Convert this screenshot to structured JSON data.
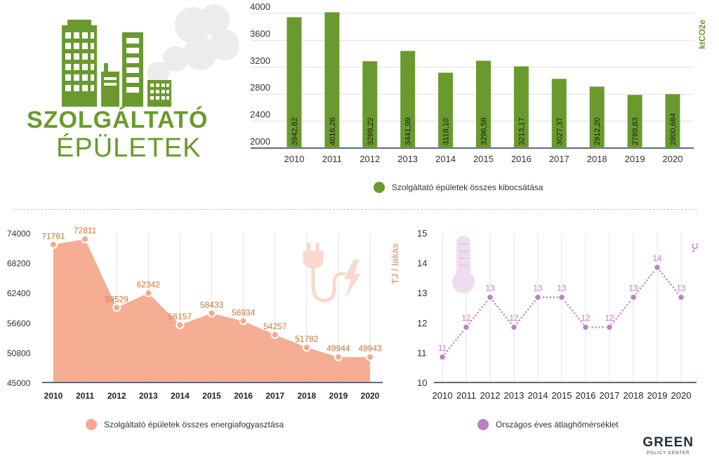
{
  "heading": {
    "line1": "SZOLGÁLTATÓ",
    "line2": "ÉPÜLETEK"
  },
  "icons": {
    "buildings": "city-buildings-icon",
    "plug": "power-plug-icon",
    "thermometer": "thermometer-icon"
  },
  "colors": {
    "green": "#6a9a2e",
    "salmon": "#f4a98e",
    "salmon_text": "#c8773d",
    "purple": "#c07fc6",
    "unit_orange": "#f0a58a"
  },
  "brand": {
    "name": "GREEN",
    "sub": "POLICY CENTER"
  },
  "chart_data": [
    {
      "type": "bar",
      "categories": [
        "2010",
        "2011",
        "2012",
        "2013",
        "2014",
        "2015",
        "2016",
        "2017",
        "2018",
        "2019",
        "2020"
      ],
      "values": [
        3942.82,
        4016.26,
        3289.22,
        3441.99,
        3119.1,
        3296.58,
        3213.17,
        3027.37,
        2912.2,
        2789.83,
        2800.684
      ],
      "value_labels": [
        "3942,82",
        "4016,26",
        "3289,22",
        "3441,99",
        "3119,10",
        "3296,58",
        "3213,17",
        "3027,37",
        "2912,20",
        "2789,83",
        "2800,684"
      ],
      "ylabel": "ktCO2e",
      "ylim": [
        2000,
        4000
      ],
      "yticks": [
        "2000",
        "2400",
        "2800",
        "3200",
        "3600",
        "4000"
      ],
      "grid": true,
      "legend": "Szolgáltató épületek összes kibocsátása",
      "legend_position": "bottom"
    },
    {
      "type": "area",
      "categories": [
        "2010",
        "2011",
        "2012",
        "2013",
        "2014",
        "2015",
        "2016",
        "2017",
        "2018",
        "2019",
        "2020"
      ],
      "values": [
        71761,
        72811,
        59529,
        62342,
        56157,
        58433,
        56934,
        54257,
        51782,
        49944,
        49943
      ],
      "value_labels": [
        "71761",
        "72811",
        "59529",
        "62342",
        "56157",
        "58433",
        "56934",
        "54257",
        "51782",
        "49944",
        "49943"
      ],
      "ylabel": "TJ / lakás",
      "ylim": [
        45000,
        74000
      ],
      "yticks": [
        "45000",
        "50800",
        "56600",
        "62400",
        "68200",
        "74000"
      ],
      "grid": true,
      "legend": "Szolgáltató épületek összes energiafogyasztása",
      "legend_position": "bottom"
    },
    {
      "type": "line",
      "categories": [
        "2010",
        "2011",
        "2012",
        "2013",
        "2014",
        "2015",
        "2016",
        "2017",
        "2018",
        "2019",
        "2020"
      ],
      "values": [
        10.85,
        11.85,
        12.85,
        11.85,
        12.85,
        12.85,
        11.85,
        11.85,
        12.85,
        13.85,
        12.85
      ],
      "value_labels": [
        "11",
        "12",
        "13",
        "12",
        "13",
        "13",
        "12",
        "12",
        "13",
        "14",
        "13"
      ],
      "ylabel": "°C",
      "ylim": [
        10,
        15
      ],
      "yticks": [
        "10",
        "11",
        "12",
        "13",
        "14",
        "15"
      ],
      "grid": true,
      "legend": "Országos éves átlaghőmérséklet",
      "legend_position": "bottom"
    }
  ]
}
